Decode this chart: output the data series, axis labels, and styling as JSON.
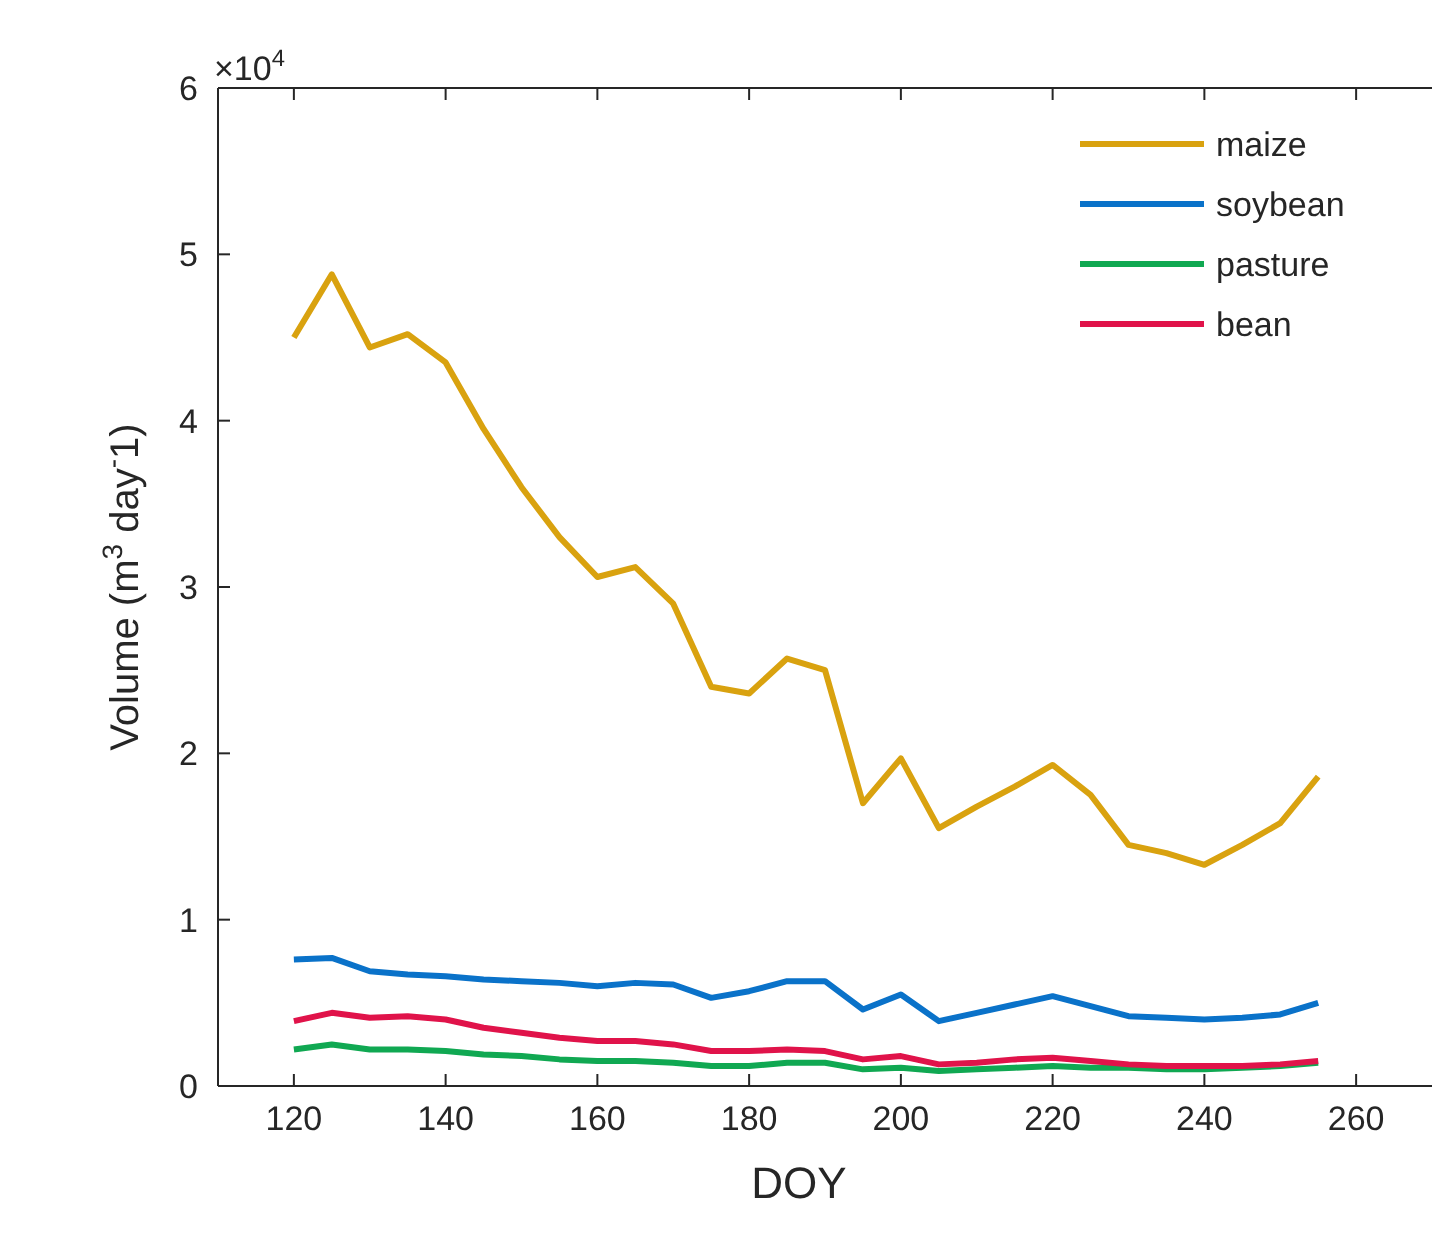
{
  "chart_data": {
    "type": "line",
    "xlabel": "DOY",
    "ylabel": "Volume (m$^{3}$ day$^{-}$1)",
    "annotations": [
      "×10$^{4}$"
    ],
    "x": [
      120,
      125,
      130,
      135,
      140,
      145,
      150,
      155,
      160,
      165,
      170,
      175,
      180,
      185,
      190,
      195,
      200,
      205,
      210,
      215,
      220,
      225,
      230,
      235,
      240,
      245,
      250,
      255
    ],
    "series": [
      {
        "name": "maize",
        "color": "#d9a20f",
        "values": [
          4.5,
          4.88,
          4.44,
          4.52,
          4.35,
          3.95,
          3.6,
          3.3,
          3.06,
          3.12,
          2.9,
          2.4,
          2.36,
          2.57,
          2.5,
          1.7,
          1.97,
          1.55,
          1.68,
          1.8,
          1.93,
          1.75,
          1.45,
          1.4,
          1.33,
          1.45,
          1.58,
          1.86
        ]
      },
      {
        "name": "soybean",
        "color": "#0a72c9",
        "values": [
          0.76,
          0.77,
          0.69,
          0.67,
          0.66,
          0.64,
          0.63,
          0.62,
          0.6,
          0.62,
          0.61,
          0.53,
          0.57,
          0.63,
          0.63,
          0.46,
          0.55,
          0.39,
          0.44,
          0.49,
          0.54,
          0.48,
          0.42,
          0.41,
          0.4,
          0.41,
          0.43,
          0.5
        ]
      },
      {
        "name": "pasture",
        "color": "#10a852",
        "values": [
          0.22,
          0.25,
          0.22,
          0.22,
          0.21,
          0.19,
          0.18,
          0.16,
          0.15,
          0.15,
          0.14,
          0.12,
          0.12,
          0.14,
          0.14,
          0.1,
          0.11,
          0.09,
          0.1,
          0.11,
          0.12,
          0.11,
          0.11,
          0.1,
          0.1,
          0.11,
          0.12,
          0.14
        ]
      },
      {
        "name": "bean",
        "color": "#e0134a",
        "values": [
          0.39,
          0.44,
          0.41,
          0.42,
          0.4,
          0.35,
          0.32,
          0.29,
          0.27,
          0.27,
          0.25,
          0.21,
          0.21,
          0.22,
          0.21,
          0.16,
          0.18,
          0.13,
          0.14,
          0.16,
          0.17,
          0.15,
          0.13,
          0.12,
          0.12,
          0.12,
          0.13,
          0.15
        ]
      }
    ],
    "xlim": [
      110,
      270
    ],
    "xticks": [
      120,
      140,
      160,
      180,
      200,
      220,
      240,
      260
    ],
    "ylim": [
      0,
      6
    ],
    "yticks": [
      0,
      1,
      2,
      3,
      4,
      5,
      6
    ],
    "legend": "top right",
    "grid": false,
    "line_style": "solid",
    "marker": "none"
  }
}
